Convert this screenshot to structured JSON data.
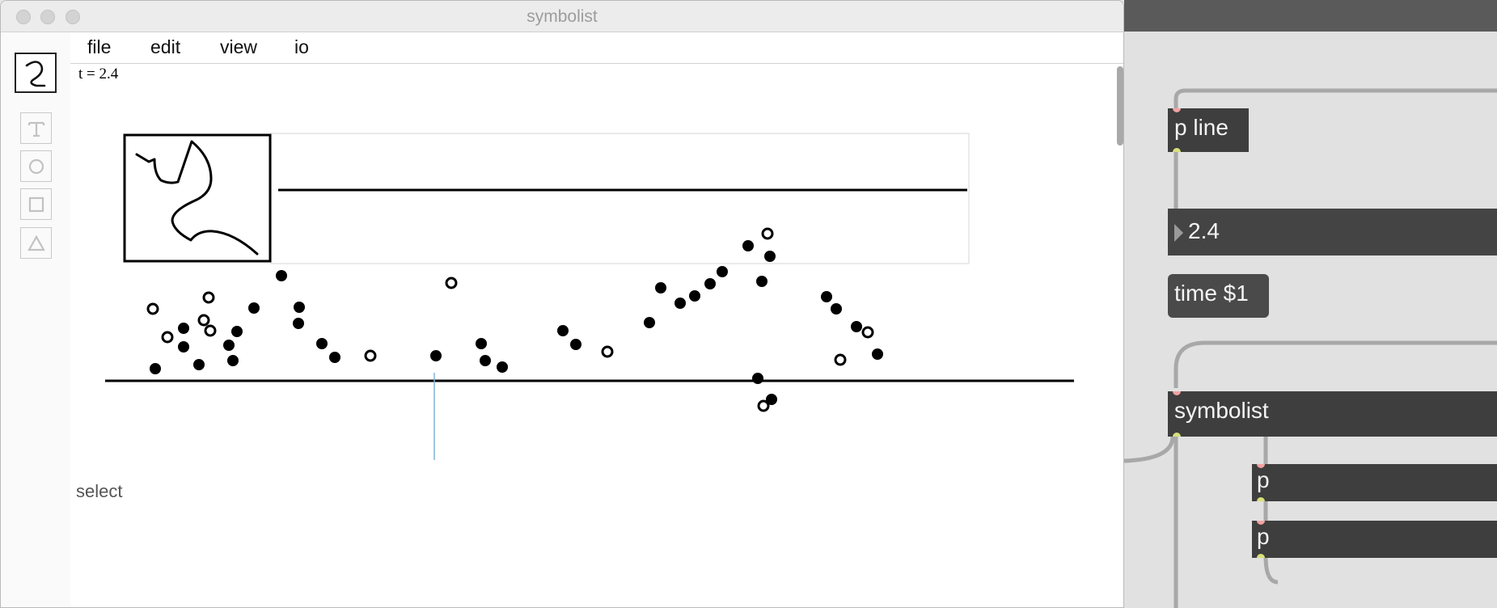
{
  "window": {
    "title": "symbolist"
  },
  "menu": [
    {
      "id": "file",
      "label": "file"
    },
    {
      "id": "edit",
      "label": "edit"
    },
    {
      "id": "view",
      "label": "view"
    },
    {
      "id": "io",
      "label": "io"
    }
  ],
  "palette": {
    "active_tool": "curve-tool",
    "tools": [
      {
        "id": "text",
        "glyph": "T",
        "icon": "text-tool-icon"
      },
      {
        "id": "circle",
        "glyph": "○",
        "icon": "circle-tool-icon"
      },
      {
        "id": "square",
        "glyph": "□",
        "icon": "square-tool-icon"
      },
      {
        "id": "triangle",
        "glyph": "△",
        "icon": "triangle-tool-icon"
      }
    ]
  },
  "canvas": {
    "time_label": "t = 2.4",
    "status_text": "select",
    "playhead_color": "#7fb2d6"
  },
  "patcher": {
    "objects": [
      {
        "id": "p-line",
        "text": "p line"
      },
      {
        "id": "number-box",
        "text": "2.4"
      },
      {
        "id": "time-message",
        "text": "time $1"
      },
      {
        "id": "symbolist-object",
        "text": "symbolist"
      },
      {
        "id": "p-object-1",
        "text": "p"
      },
      {
        "id": "p-object-2",
        "text": "p"
      }
    ]
  }
}
